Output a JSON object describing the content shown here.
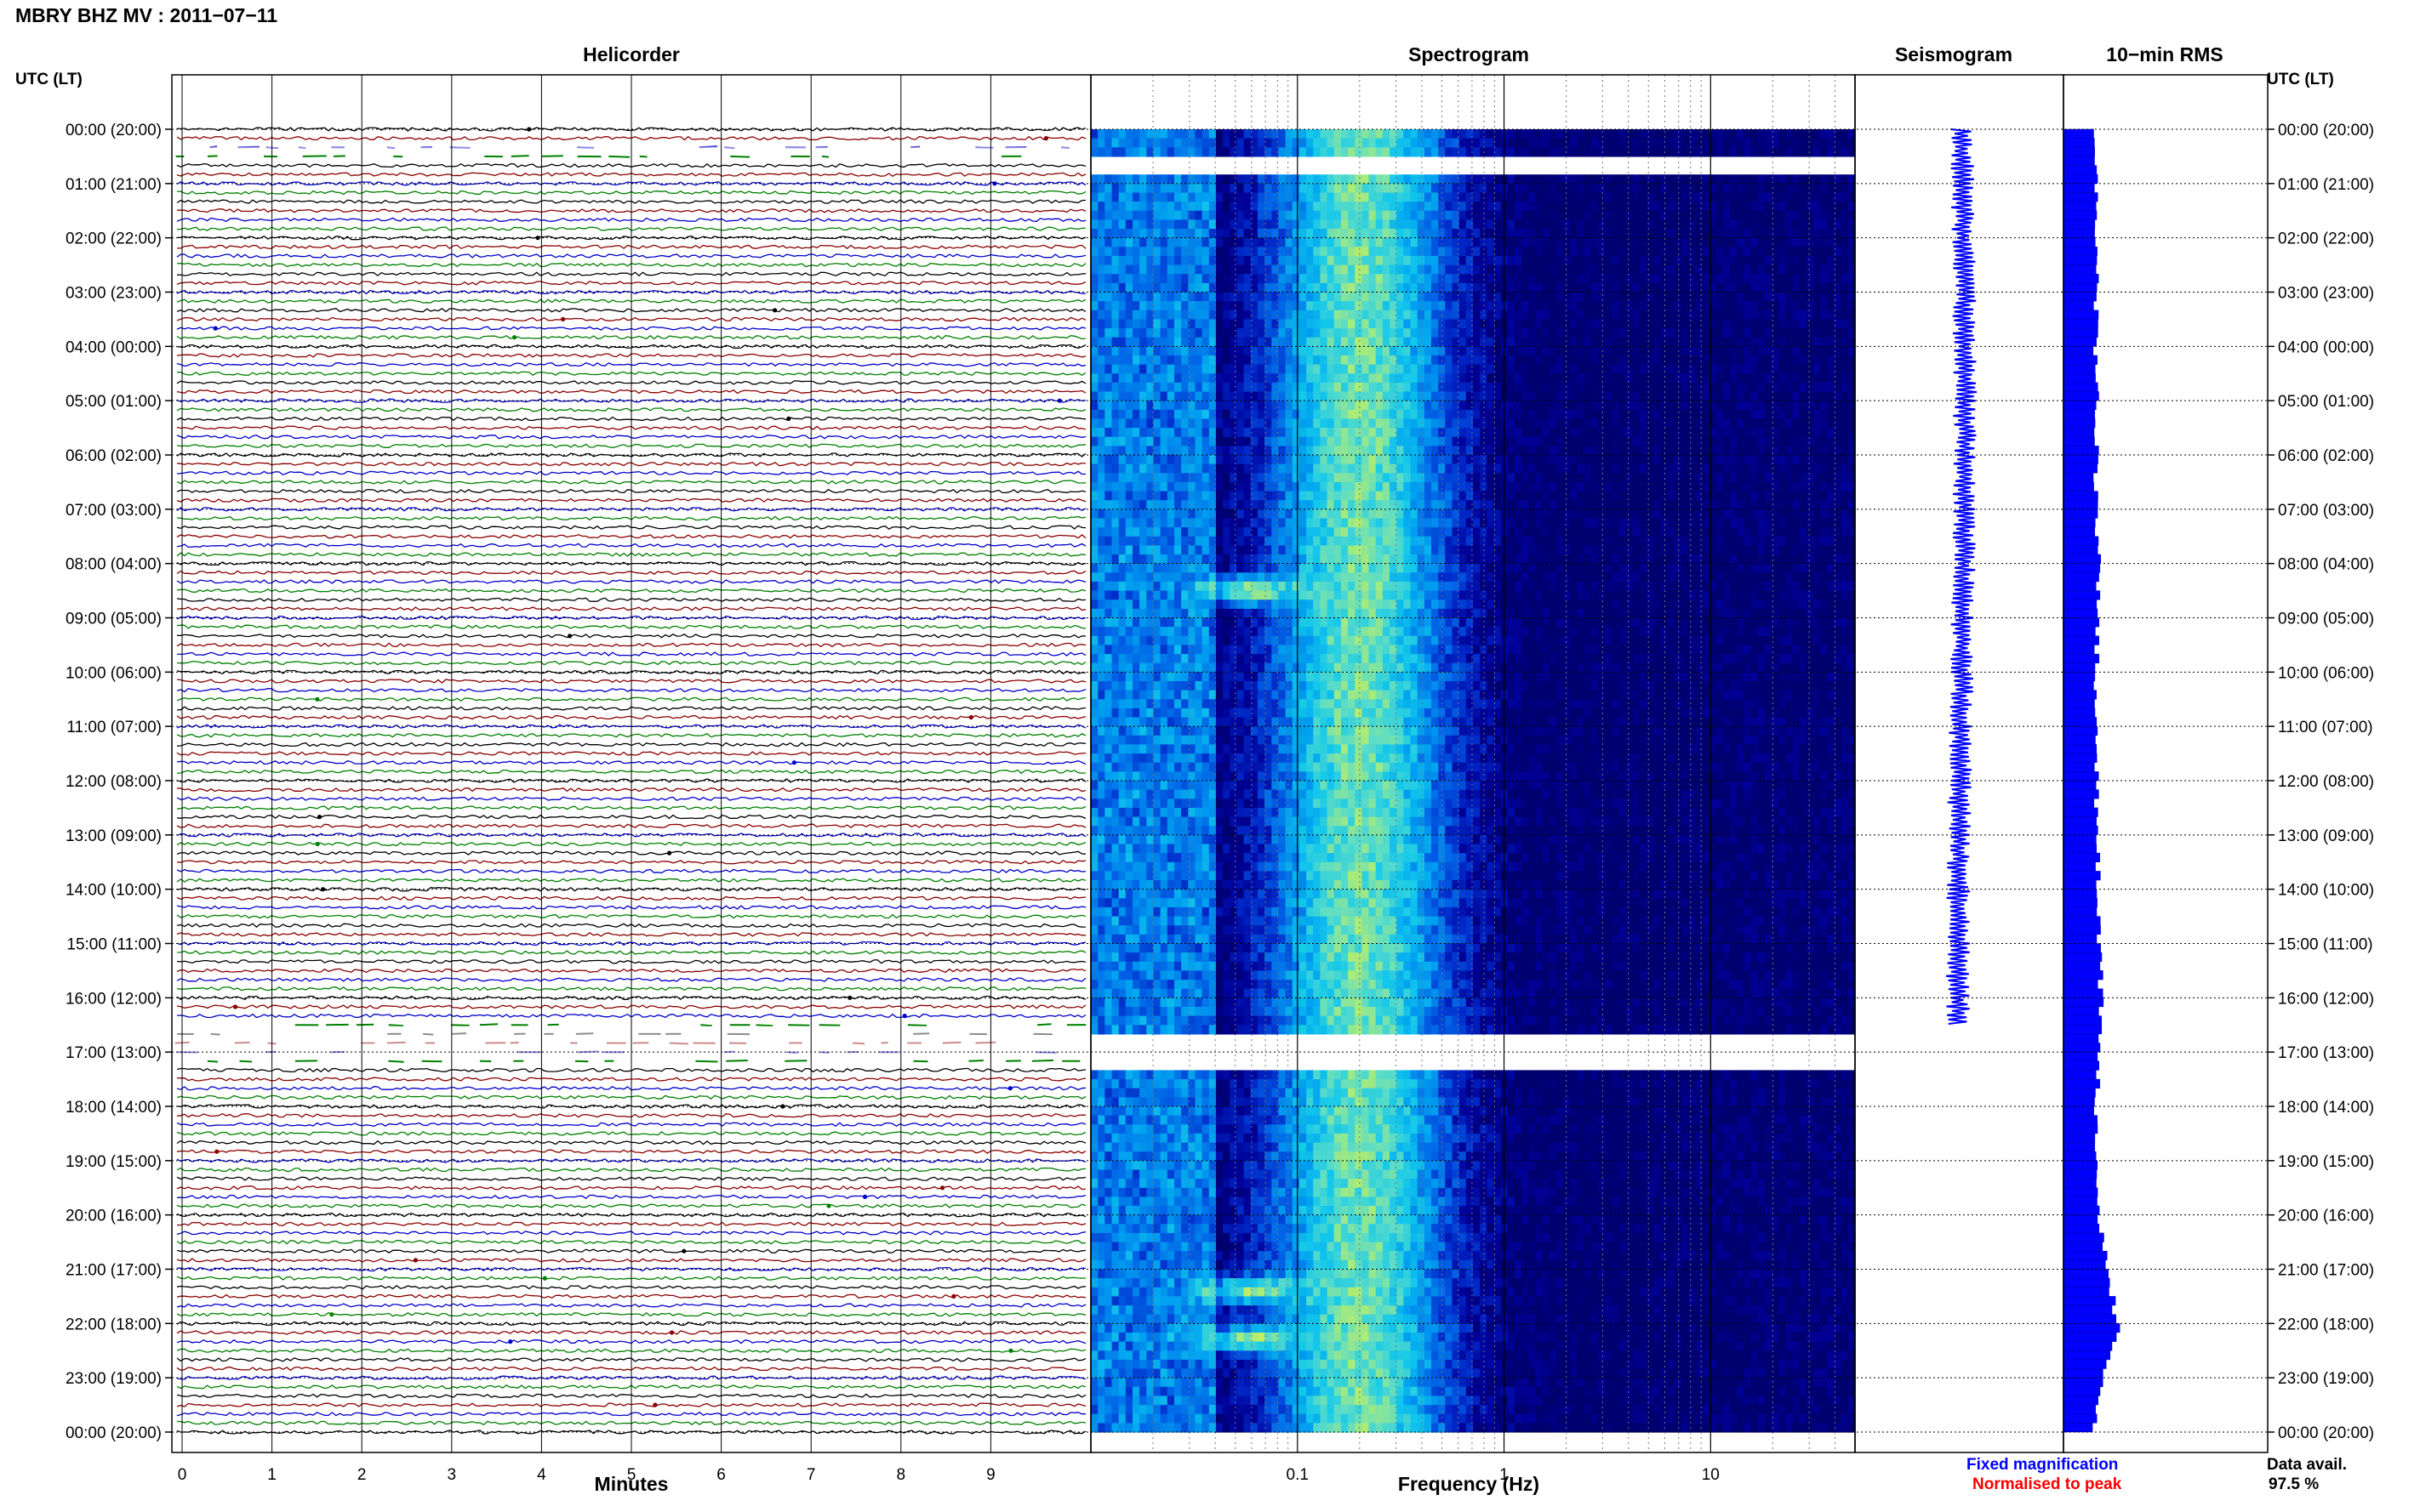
{
  "page": {
    "title": "MBRY BHZ MV : 2011−07−11",
    "time_label": "UTC (LT)",
    "data_avail_label": "Data avail.",
    "data_avail_value": "97.5 %",
    "legend_fixed": "Fixed magnification",
    "legend_normalised": "Normalised to peak"
  },
  "colors": {
    "fixed": "#0000ff",
    "normalised": "#ff0000",
    "trace_cycle": [
      "#000000",
      "#8b0000",
      "#0000cd",
      "#008000"
    ]
  },
  "chart_data": [
    {
      "type": "line",
      "title": "Helicorder",
      "xlabel": "Minutes",
      "ylabel": "UTC (LT)",
      "x_ticks": [
        "0",
        "1",
        "2",
        "3",
        "4",
        "5",
        "6",
        "7",
        "8",
        "9"
      ],
      "xlim": [
        0,
        10
      ],
      "rows_per_hour": 6,
      "gaps_hours": [
        [
          0.3,
          0.6
        ],
        [
          16.5,
          17.2
        ]
      ],
      "hour_labels": [
        "00:00 (20:00)",
        "01:00 (21:00)",
        "02:00 (22:00)",
        "03:00 (23:00)",
        "04:00 (00:00)",
        "05:00 (01:00)",
        "06:00 (02:00)",
        "07:00 (03:00)",
        "08:00 (04:00)",
        "09:00 (05:00)",
        "10:00 (06:00)",
        "11:00 (07:00)",
        "12:00 (08:00)",
        "13:00 (09:00)",
        "14:00 (10:00)",
        "15:00 (11:00)",
        "16:00 (12:00)",
        "17:00 (13:00)",
        "18:00 (14:00)",
        "19:00 (15:00)",
        "20:00 (16:00)",
        "21:00 (17:00)",
        "22:00 (18:00)",
        "23:00 (19:00)",
        "00:00 (20:00)"
      ]
    },
    {
      "type": "heatmap",
      "title": "Spectrogram",
      "xlabel": "Frequency (Hz)",
      "x_scale": "log",
      "xlim": [
        0.01,
        50
      ],
      "x_tick_labels": [
        "0.1",
        "1",
        "10"
      ],
      "x_tick_values": [
        0.1,
        1,
        10
      ],
      "energy_peak_hz": 0.2,
      "strong_events_hours": [
        8.4,
        21.3,
        22.2
      ],
      "gaps_hours": [
        [
          0.4,
          0.7
        ],
        [
          16.55,
          17.3
        ]
      ]
    },
    {
      "type": "line",
      "title": "Seismogram",
      "gaps_hours": [
        [
          16.5,
          16.7
        ]
      ]
    },
    {
      "type": "bar",
      "title": "10−min RMS",
      "orientation": "horizontal",
      "interval_minutes": 10,
      "hourly_rms_relative": [
        0.45,
        0.45,
        0.46,
        0.44,
        0.45,
        0.46,
        0.45,
        0.44,
        0.5,
        0.46,
        0.45,
        0.44,
        0.45,
        0.46,
        0.48,
        0.5,
        0.52,
        0.5,
        0.44,
        0.46,
        0.48,
        0.62,
        0.75,
        0.55,
        0.4
      ]
    }
  ]
}
